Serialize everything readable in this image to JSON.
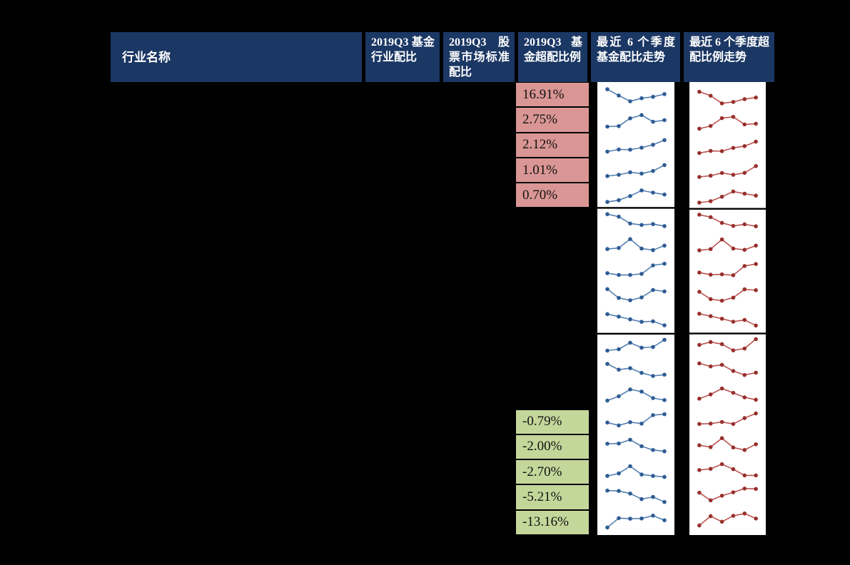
{
  "meta": {
    "description": "Fund industry allocation table for 2019Q3 with sparkline trend columns on black background",
    "visible_rows": 18,
    "rows_with_hidden_text_note": "industry names and ratio columns are not visible (dark-on-dark); only overweight/underweight ratio cells and trend sparklines are visible"
  },
  "colors": {
    "page_bg": "#000000",
    "header_bg": "#1B3764",
    "header_text": "#FFFFFF",
    "overweight_cell_bg": "#D99694",
    "underweight_cell_bg": "#C4D79B",
    "cell_text": "#111111",
    "spark_bg": "#FFFFFF",
    "spark_blue_line": "#5580B3",
    "spark_blue_dot": "#2E5C94",
    "spark_red_line": "#BB5350",
    "spark_red_dot": "#962F2B",
    "separator": "#000000"
  },
  "table": {
    "headers": [
      {
        "label": "行业名称"
      },
      {
        "label": "2019Q3 基金行业配比"
      },
      {
        "label": "2019Q3 股票市场标准配比"
      },
      {
        "label": "2019Q3 基金超配比例"
      },
      {
        "label": "最近 6 个季度基金配比走势"
      },
      {
        "label": "最近 6 个季度超配比例走势"
      }
    ],
    "overweight_values": [
      "16.91%",
      "2.75%",
      "2.12%",
      "1.01%",
      "0.70%"
    ],
    "underweight_values": [
      "-0.79%",
      "-2.00%",
      "-2.70%",
      "-5.21%",
      "-13.16%"
    ]
  },
  "chart_data": {
    "type": "line",
    "title": "最近 6 个季度基金配比走势 / 超配比例走势 sparklines",
    "x_label": "最近 6 个季度 (last 6 quarters)",
    "points_per_sparkline": 6,
    "rows": 18,
    "block_row_groups": [
      5,
      5,
      8
    ],
    "legend": [
      {
        "name": "基金配比走势",
        "color": "#5580B3"
      },
      {
        "name": "超配比例走势",
        "color": "#BB5350"
      }
    ],
    "note": "values normalized 0-1 within each sparkline cell (1 = top)",
    "fund_allocation_trend": [
      [
        0.8,
        0.45,
        0.13,
        0.3,
        0.38,
        0.53
      ],
      [
        0.12,
        0.15,
        0.58,
        0.76,
        0.39,
        0.48
      ],
      [
        0.13,
        0.25,
        0.24,
        0.35,
        0.51,
        0.77
      ],
      [
        0.17,
        0.24,
        0.38,
        0.31,
        0.45,
        0.78
      ],
      [
        0.13,
        0.23,
        0.46,
        0.77,
        0.65,
        0.54
      ],
      [
        0.85,
        0.71,
        0.33,
        0.25,
        0.3,
        0.19
      ],
      [
        0.31,
        0.37,
        0.86,
        0.34,
        0.25,
        0.5
      ],
      [
        0.37,
        0.27,
        0.27,
        0.33,
        0.8,
        0.89
      ],
      [
        0.88,
        0.39,
        0.26,
        0.42,
        0.83,
        0.75
      ],
      [
        0.89,
        0.75,
        0.6,
        0.46,
        0.49,
        0.27
      ],
      [
        0.26,
        0.34,
        0.7,
        0.42,
        0.46,
        0.86
      ],
      [
        0.92,
        0.6,
        0.68,
        0.42,
        0.25,
        0.32
      ],
      [
        0.28,
        0.52,
        0.9,
        0.78,
        0.42,
        0.31
      ],
      [
        0.46,
        0.3,
        0.48,
        0.4,
        0.87,
        0.92
      ],
      [
        0.68,
        0.69,
        0.9,
        0.54,
        0.33,
        0.26
      ],
      [
        0.29,
        0.43,
        0.83,
        0.37,
        0.29,
        0.23
      ],
      [
        0.87,
        0.85,
        0.71,
        0.4,
        0.52,
        0.24
      ],
      [
        0.22,
        0.74,
        0.71,
        0.72,
        0.88,
        0.62
      ]
    ],
    "overweight_ratio_trend": [
      [
        0.77,
        0.55,
        0.12,
        0.2,
        0.36,
        0.45
      ],
      [
        0.1,
        0.25,
        0.69,
        0.76,
        0.34,
        0.38
      ],
      [
        0.13,
        0.25,
        0.24,
        0.42,
        0.52,
        0.77
      ],
      [
        0.19,
        0.26,
        0.41,
        0.31,
        0.42,
        0.8
      ],
      [
        0.15,
        0.23,
        0.48,
        0.77,
        0.65,
        0.54
      ],
      [
        0.87,
        0.73,
        0.41,
        0.24,
        0.33,
        0.22
      ],
      [
        0.27,
        0.34,
        0.88,
        0.37,
        0.3,
        0.53
      ],
      [
        0.42,
        0.3,
        0.32,
        0.27,
        0.79,
        0.9
      ],
      [
        0.74,
        0.33,
        0.24,
        0.41,
        0.88,
        0.83
      ],
      [
        0.91,
        0.77,
        0.63,
        0.46,
        0.56,
        0.25
      ],
      [
        0.56,
        0.72,
        0.6,
        0.25,
        0.36,
        0.88
      ],
      [
        0.92,
        0.75,
        0.84,
        0.49,
        0.27,
        0.4
      ],
      [
        0.34,
        0.58,
        0.91,
        0.67,
        0.41,
        0.28
      ],
      [
        0.32,
        0.34,
        0.43,
        0.32,
        0.65,
        0.91
      ],
      [
        0.52,
        0.42,
        0.92,
        0.4,
        0.26,
        0.58
      ],
      [
        0.53,
        0.6,
        0.86,
        0.58,
        0.23,
        0.23
      ],
      [
        0.66,
        0.23,
        0.49,
        0.68,
        0.89,
        0.87
      ],
      [
        0.22,
        0.74,
        0.43,
        0.76,
        0.89,
        0.61
      ]
    ]
  }
}
